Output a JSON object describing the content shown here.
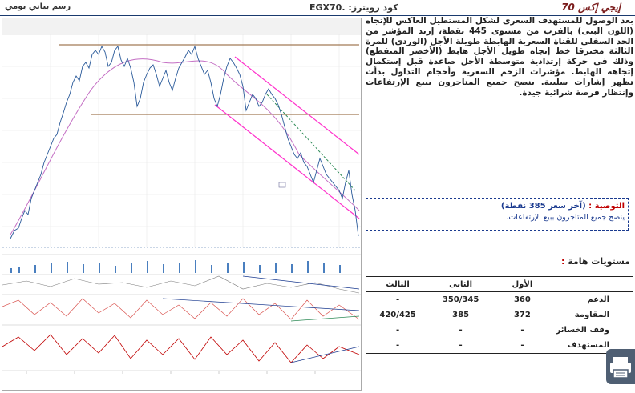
{
  "header": {
    "brand": "إيجي إكس 70",
    "ticker": "كود رويترز: .EGX70",
    "chart_type": "رسم بياني يومي"
  },
  "analysis": {
    "text": "بعد الوصول للمستهدف السعرى لشكل المستطيل العاكس للإتجاه (اللون البنى) بالقرب من مستوى 445 نقطة، إرتد المؤشر من الحد السفلى للقناة السعرية الهابطة طويلة الأجل (الوردى) للمرة الثالثة مخترقا خط إتجاه طويل الأجل هابط (الأخضر المتقطع) وذلك فى حركة إرتدادية متوسطة الأجل صاعدة قبل إستكمال إتجاهه الهابط. مؤشرات الزخم السعرية وأحجام التداول بدأت تظهر إشارات سلبية. ينصح جميع المتاجرون ببيع الإرتفاعات وإنتظار فرصة شرائية جيدة."
  },
  "recommendation": {
    "title": "التوصية :",
    "last_price": "(آخر سعر 385 نقطة)",
    "body": "ينصح جميع المتاجرون ببيع الإرتفاعات."
  },
  "levels": {
    "title": "مستويات هامة",
    "colon": " :",
    "headers": [
      "",
      "الأول",
      "الثانى",
      "الثالث"
    ],
    "rows": [
      {
        "label": "الدعم",
        "first": "360",
        "second": "350/345",
        "third": "-"
      },
      {
        "label": "المقاومة",
        "first": "372",
        "second": "385",
        "third": "420/425"
      },
      {
        "label": "وقف الخسائر",
        "first": "-",
        "second": "-",
        "third": "-"
      },
      {
        "label": "المستهدف",
        "first": "-",
        "second": "-",
        "third": "-"
      }
    ]
  },
  "icons": {
    "print": "printer-icon"
  },
  "colors": {
    "channel": "#ff33cc",
    "rectangle_line": "#8b5a2b",
    "trend_line": "#2e8b57",
    "price": "#2a5a9a",
    "accent_red": "#c00000",
    "accent_blue": "#1a3a8f"
  }
}
